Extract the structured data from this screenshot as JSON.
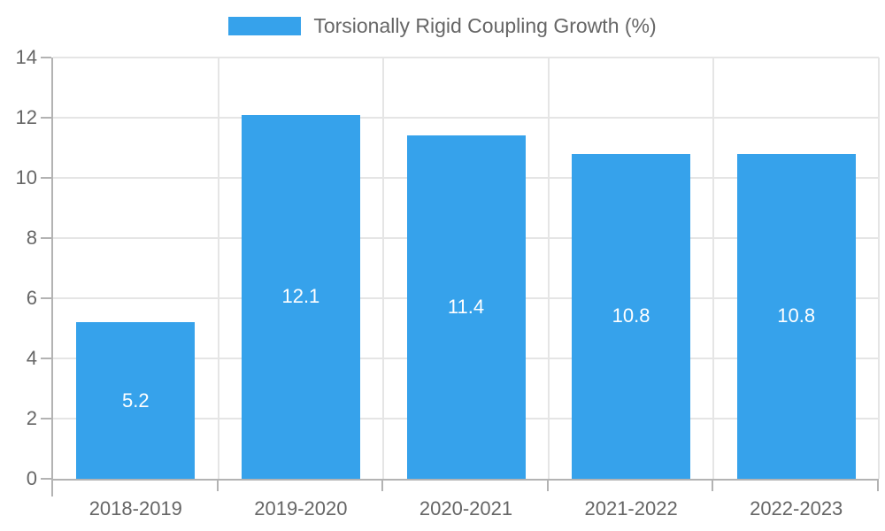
{
  "chart_data": {
    "type": "bar",
    "title": "Torsionally Rigid Coupling Growth (%)",
    "legend_label": "Torsionally Rigid Coupling Growth (%)",
    "legend_position": "top-center",
    "categories": [
      "2018-2019",
      "2019-2020",
      "2020-2021",
      "2021-2022",
      "2022-2023"
    ],
    "values": [
      5.2,
      12.1,
      11.4,
      10.8,
      10.8
    ],
    "value_labels": [
      "5.2",
      "12.1",
      "11.4",
      "10.8",
      "10.8"
    ],
    "xlabel": "",
    "ylabel": "",
    "ylim": [
      0,
      14
    ],
    "yticks": [
      0,
      2,
      4,
      6,
      8,
      10,
      12,
      14
    ],
    "grid": true,
    "colors": {
      "bar": "#36A2EB",
      "grid": "#E5E5E5",
      "axis": "#B3B3B3",
      "text": "#666666",
      "bar_label": "#FFFFFF",
      "background": "#FFFFFF"
    }
  }
}
